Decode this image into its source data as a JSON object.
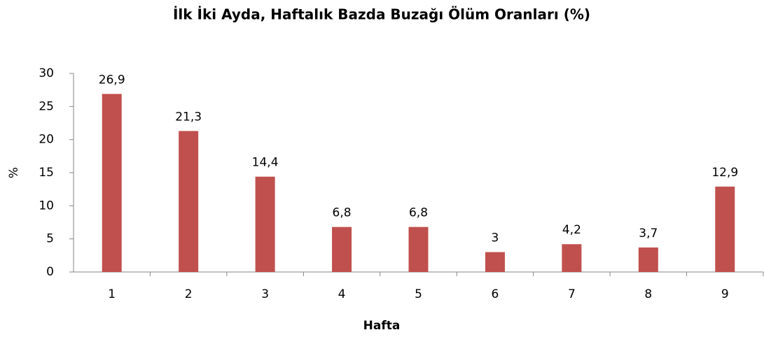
{
  "chart_data": {
    "type": "bar",
    "title": "İlk İki Ayda, Haftalık Bazda Buzağı Ölüm Oranları (%)",
    "x_label": "Hafta",
    "y_label": "%",
    "categories": [
      "1",
      "2",
      "3",
      "4",
      "5",
      "6",
      "7",
      "8",
      "9"
    ],
    "values": [
      26.9,
      21.3,
      14.4,
      6.8,
      6.8,
      3,
      4.2,
      3.7,
      12.9
    ],
    "value_labels": [
      "26,9",
      "21,3",
      "14,4",
      "6,8",
      "6,8",
      "3",
      "4,2",
      "3,7",
      "12,9"
    ],
    "color": "#c0504d",
    "ylim": [
      0,
      30
    ],
    "yticks": [
      0,
      5,
      10,
      15,
      20,
      25,
      30
    ],
    "grid": false
  }
}
